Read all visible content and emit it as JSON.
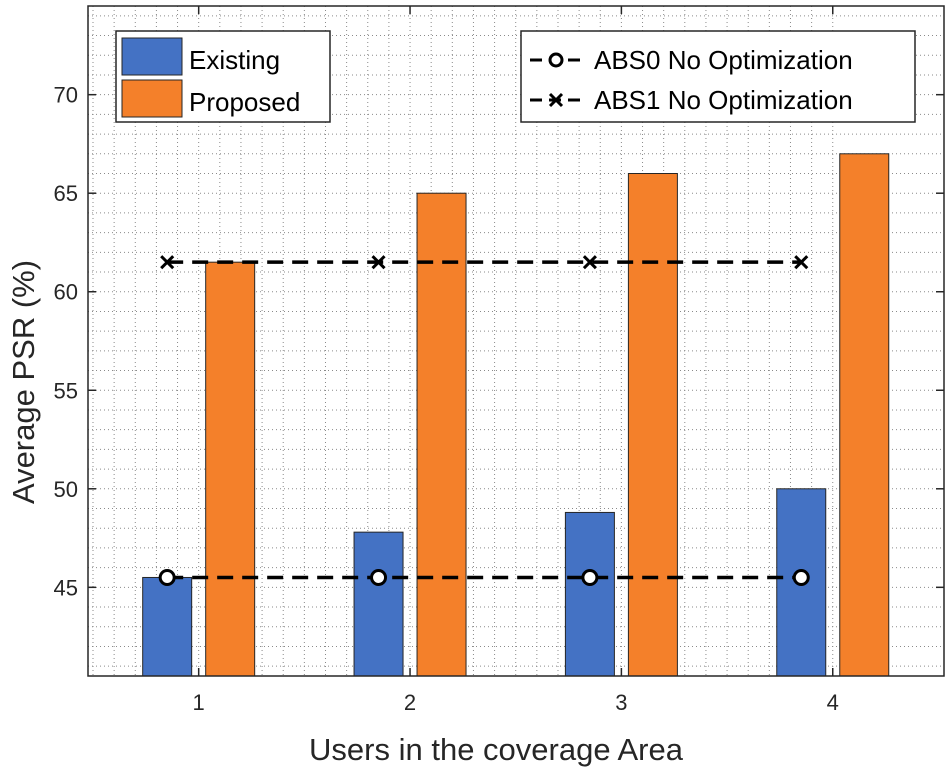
{
  "chart_data": {
    "type": "bar",
    "title": "",
    "xlabel": "Users in the coverage Area",
    "ylabel": "Average PSR (%)",
    "categories": [
      "1",
      "2",
      "3",
      "4"
    ],
    "ylim": [
      40.5,
      74.5
    ],
    "yticks": [
      45,
      50,
      55,
      60,
      65,
      70
    ],
    "grid": true,
    "grid_style": "dotted",
    "bar_series": [
      {
        "name": "Existing",
        "color": "#4472C4",
        "values": [
          45.5,
          47.8,
          48.8,
          50.0
        ]
      },
      {
        "name": "Proposed",
        "color": "#F4802A",
        "values": [
          61.5,
          65.0,
          66.0,
          67.0
        ]
      }
    ],
    "line_series": [
      {
        "name": "ABS0 No Optimization",
        "marker": "circle",
        "linestyle": "dashed",
        "color": "#000000",
        "values": [
          45.5,
          45.5,
          45.5,
          45.5
        ]
      },
      {
        "name": "ABS1 No Optimization",
        "marker": "x",
        "linestyle": "dashed",
        "color": "#000000",
        "values": [
          61.5,
          61.5,
          61.5,
          61.5
        ]
      }
    ],
    "legend_left_placement": "top-left",
    "legend_right_placement": "top-right"
  }
}
